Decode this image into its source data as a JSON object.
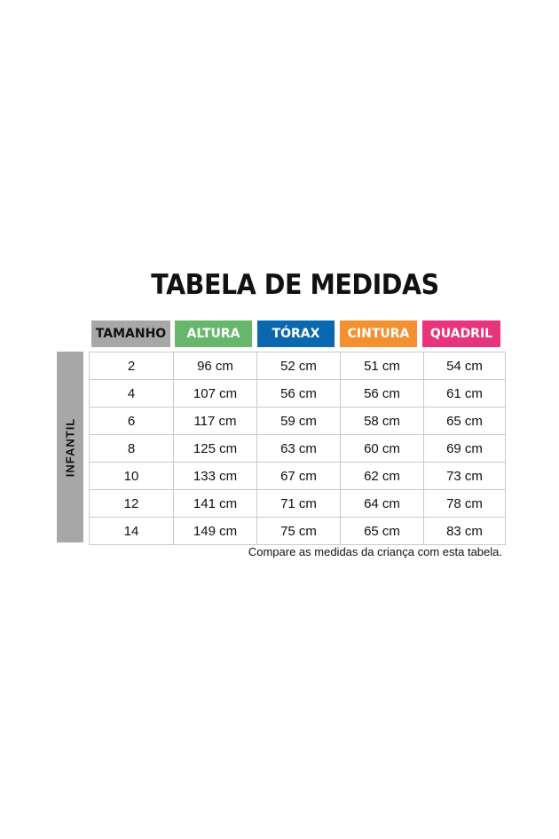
{
  "title": "TABELA DE MEDIDAS",
  "headers": [
    {
      "label": "TAMANHO",
      "color": "#a7a7a7",
      "text_color": "#111111"
    },
    {
      "label": "ALTURA",
      "color": "#66b76b",
      "text_color": "#ffffff"
    },
    {
      "label": "TÓRAX",
      "color": "#0a68b0",
      "text_color": "#ffffff"
    },
    {
      "label": "CINTURA",
      "color": "#f39131",
      "text_color": "#ffffff"
    },
    {
      "label": "QUADRIL",
      "color": "#e8347a",
      "text_color": "#ffffff"
    }
  ],
  "side_label": "INFANTIL",
  "rows": [
    [
      "2",
      "96 cm",
      "52 cm",
      "51 cm",
      "54 cm"
    ],
    [
      "4",
      "107 cm",
      "56 cm",
      "56 cm",
      "61 cm"
    ],
    [
      "6",
      "117 cm",
      "59 cm",
      "58 cm",
      "65 cm"
    ],
    [
      "8",
      "125 cm",
      "63 cm",
      "60 cm",
      "69 cm"
    ],
    [
      "10",
      "133 cm",
      "67 cm",
      "62 cm",
      "73 cm"
    ],
    [
      "12",
      "141 cm",
      "71 cm",
      "64 cm",
      "78 cm"
    ],
    [
      "14",
      "149 cm",
      "75 cm",
      "65 cm",
      "83 cm"
    ]
  ],
  "note": "Compare as medidas da criança com esta tabela."
}
